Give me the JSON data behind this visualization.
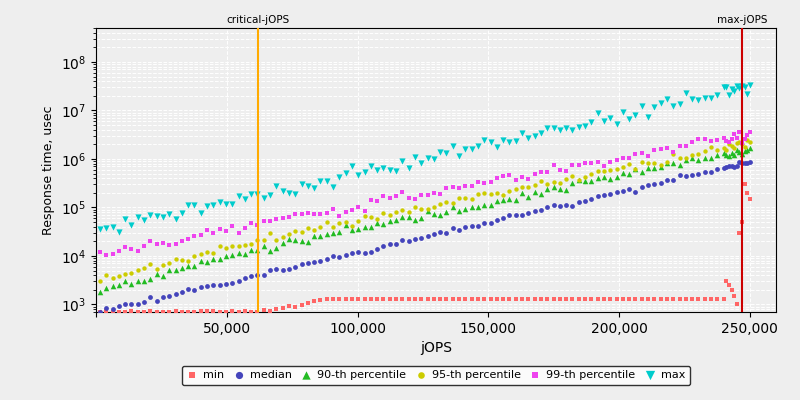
{
  "xlabel": "jOPS",
  "ylabel": "Response time, usec",
  "xlim": [
    0,
    260000
  ],
  "ylim": [
    700,
    500000000
  ],
  "critical_jops": 62000,
  "max_jops": 247000,
  "critical_label": "critical-jOPS",
  "max_label": "max-jOPS",
  "bg_color": "#eeeeee",
  "grid_color": "#ffffff",
  "critical_line_color": "#ffaa00",
  "max_line_color": "#cc0000",
  "series_colors": {
    "min": "#ff6666",
    "median": "#4444bb",
    "p90": "#22bb22",
    "p95": "#cccc00",
    "p99": "#ee44ee",
    "max": "#00cccc"
  },
  "series_labels": {
    "min": "min",
    "median": "median",
    "p90": "90-th percentile",
    "p95": "95-th percentile",
    "p99": "99-th percentile",
    "max": "max"
  },
  "series_markers": {
    "min": "s",
    "median": "o",
    "p90": "^",
    "p95": "o",
    "p99": "s",
    "max": "v"
  },
  "marker_sizes": {
    "min": 8,
    "median": 12,
    "p90": 16,
    "p95": 10,
    "p99": 9,
    "max": 20
  }
}
